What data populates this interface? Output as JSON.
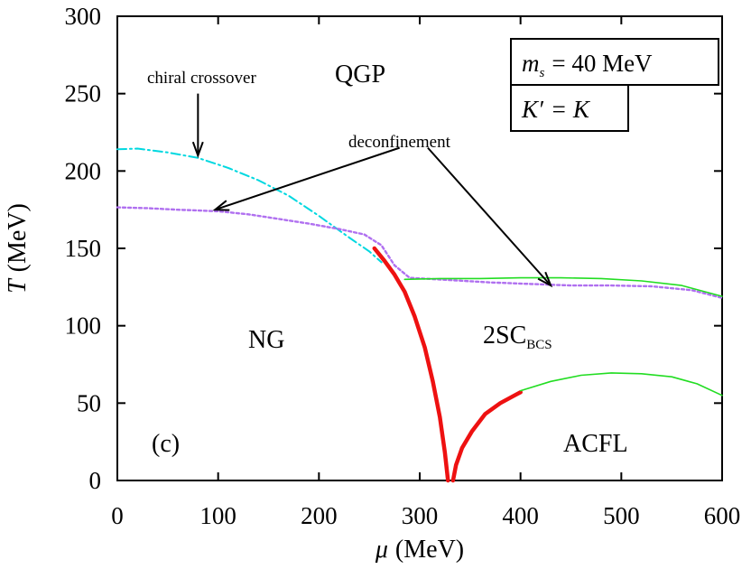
{
  "chart_data": {
    "type": "line",
    "xlabel": {
      "symbol": "μ",
      "unit": "(MeV)"
    },
    "ylabel": {
      "symbol": "T",
      "unit": "(MeV)"
    },
    "xlim": [
      0,
      600
    ],
    "ylim": [
      0,
      300
    ],
    "xticks": [
      "0",
      "100",
      "200",
      "300",
      "400",
      "500",
      "600"
    ],
    "yticks": [
      "0",
      "50",
      "100",
      "150",
      "200",
      "250",
      "300"
    ],
    "grid": false,
    "legend": "none",
    "boxes": [
      {
        "lhs": "m",
        "sub": "s",
        "rhs": "= 40 MeV"
      },
      {
        "lhs": "K′",
        "rhs": "= K"
      }
    ],
    "regions": {
      "qgp": "QGP",
      "ng": "NG",
      "twosc": "2SC",
      "twosc_sub": "BCS",
      "acfl": "ACFL"
    },
    "annotations": {
      "chiral": "chiral crossover",
      "deconf": "deconfinement",
      "panel": "(c)"
    },
    "series": [
      {
        "style": "cyan-dashdot",
        "color": "#00d8e0",
        "x": [
          0,
          20,
          50,
          80,
          110,
          140,
          170,
          200,
          230,
          250,
          262
        ],
        "y": [
          214,
          214.5,
          212,
          208.5,
          202,
          194,
          184,
          171,
          157,
          148,
          141
        ]
      },
      {
        "style": "violet-dotted",
        "color": "#b070f0",
        "x": [
          0,
          30,
          60,
          100,
          130,
          160,
          190,
          220,
          245,
          262,
          275,
          290,
          330,
          370,
          410,
          450,
          490,
          530,
          570,
          600
        ],
        "y": [
          176.5,
          176,
          175,
          174,
          172,
          169,
          166,
          162.5,
          159,
          152,
          139,
          131,
          129.5,
          128,
          127,
          126,
          126,
          125.5,
          123,
          118
        ]
      },
      {
        "style": "red-thick",
        "color": "#ee1111",
        "x": [
          255,
          265,
          275,
          285,
          295,
          305,
          313,
          320,
          325,
          328
        ],
        "y": [
          150,
          142,
          133,
          122,
          106,
          86,
          64,
          41,
          18,
          0
        ]
      },
      {
        "style": "red-thick",
        "color": "#ee1111",
        "x": [
          333,
          336,
          342,
          352,
          365,
          380,
          394,
          400
        ],
        "y": [
          0,
          10,
          21,
          32,
          43,
          50,
          55,
          57
        ]
      },
      {
        "style": "green-thin",
        "color": "#22dd22",
        "x": [
          285,
          320,
          360,
          400,
          440,
          480,
          520,
          560,
          600
        ],
        "y": [
          130,
          130.5,
          130.5,
          131,
          131,
          130.5,
          129,
          126,
          119
        ]
      },
      {
        "style": "green-thin",
        "color": "#22dd22",
        "x": [
          400,
          430,
          460,
          490,
          520,
          550,
          575,
          600
        ],
        "y": [
          58,
          64,
          68,
          69.5,
          69,
          67,
          62.5,
          55
        ]
      }
    ],
    "arrows": [
      {
        "from": [
          80,
          250
        ],
        "to": [
          80,
          210
        ]
      },
      {
        "from": [
          280,
          215
        ],
        "to": [
          97,
          175
        ]
      },
      {
        "from": [
          308,
          215
        ],
        "to": [
          430,
          126
        ]
      }
    ]
  }
}
